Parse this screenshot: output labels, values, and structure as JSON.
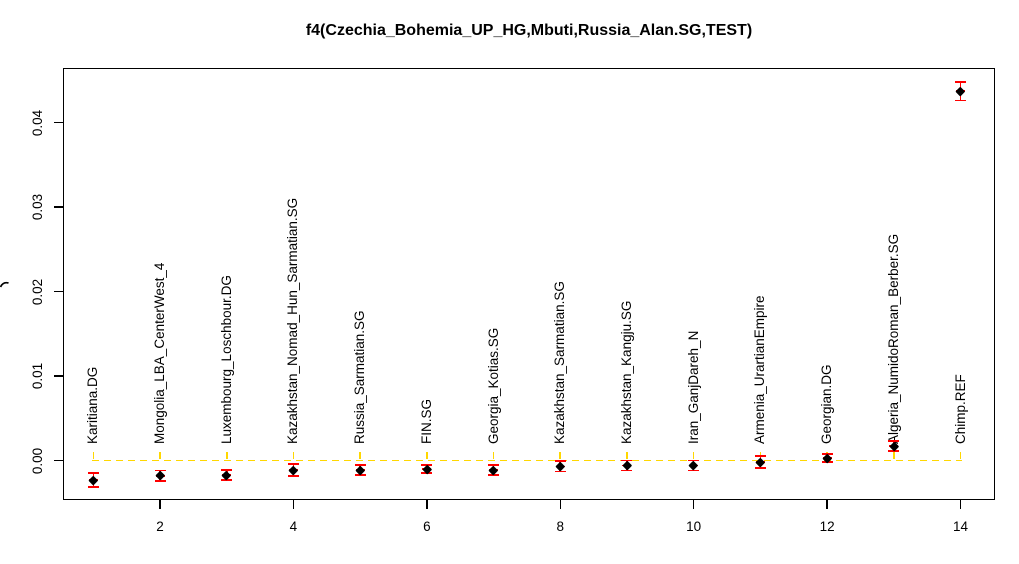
{
  "figure": {
    "title": "f4(Czechia_Bohemia_UP_HG,Mbuti,Russia_Alan.SG,TEST)"
  },
  "chart_data": {
    "type": "scatter",
    "title": "f4(Czechia_Bohemia_UP_HG,Mbuti,Russia_Alan.SG,TEST)",
    "x": [
      1,
      2,
      3,
      4,
      5,
      6,
      7,
      8,
      9,
      10,
      11,
      12,
      13,
      14
    ],
    "point_labels": [
      "Karitiana.DG",
      "Mongolia_LBA_CenterWest_4",
      "Luxembourg_Loschbour.DG",
      "Kazakhstan_Nomad_Hun_Sarmatian.SG",
      "Russia_Sarmatian.SG",
      "FIN.SG",
      "Georgia_Kotias.SG",
      "Kazakhstan_Sarmatian.SG",
      "Kazakhstan_Kangju.SG",
      "Iran_GanjDareh_N",
      "Armenia_UrartianEmpire",
      "Georgian.DG",
      "Algeria_NumidoRoman_Berber.SG",
      "Chimp.REF"
    ],
    "values": [
      -0.0023,
      -0.0018,
      -0.0017,
      -0.0011,
      -0.0011,
      -0.001,
      -0.0011,
      -0.0007,
      -0.0006,
      -0.0006,
      -0.0002,
      0.0003,
      0.0017,
      0.0437
    ],
    "error_bars": [
      0.0008,
      0.0006,
      0.0006,
      0.0007,
      0.0006,
      0.0005,
      0.0006,
      0.0006,
      0.0006,
      0.0006,
      0.0007,
      0.0005,
      0.0006,
      0.0011
    ],
    "xtick_labels": [
      "2",
      "4",
      "6",
      "8",
      "10",
      "12",
      "14"
    ],
    "xticks": [
      2,
      4,
      6,
      8,
      10,
      12,
      14
    ],
    "ytick_labels": [
      "0.00",
      "0.01",
      "0.02",
      "0.03",
      "0.04"
    ],
    "yticks": [
      0,
      0.01,
      0.02,
      0.03,
      0.04
    ],
    "xlim": [
      0.55,
      14.5
    ],
    "ylim": [
      -0.0047,
      0.0466
    ],
    "grid": false,
    "legend": "none",
    "point_label_rotation_deg": 90,
    "marker": {
      "shape": "diamond",
      "color": "#000000"
    },
    "error_bar_color": "#ff0000",
    "zero_line": {
      "y": 0,
      "style": "dashed",
      "color": "#ffd700"
    }
  }
}
